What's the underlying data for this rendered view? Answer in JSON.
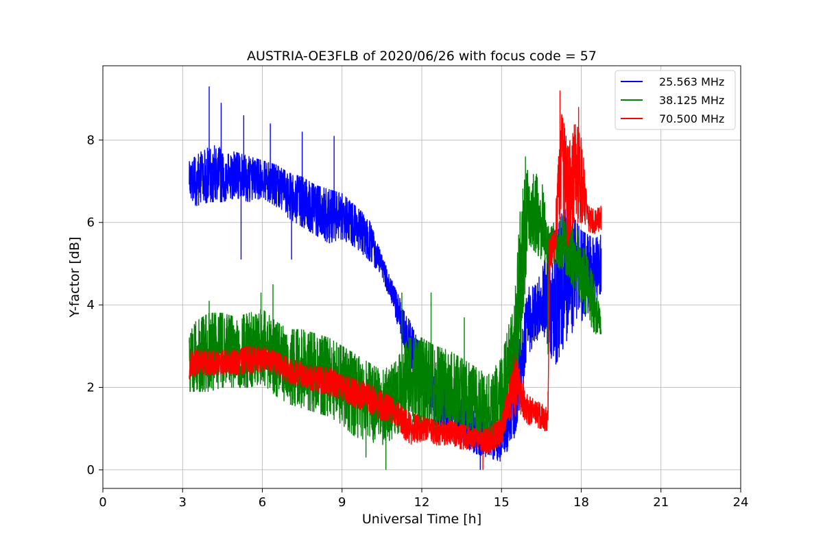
{
  "chart_data": {
    "type": "line",
    "title": "AUSTRIA-OE3FLB of 2020/06/26 with focus code = 57",
    "xlabel": "Universal Time [h]",
    "ylabel": "Y-factor [dB]",
    "xlim": [
      0,
      24
    ],
    "ylim": [
      -0.45,
      9.8
    ],
    "xticks": [
      0,
      3,
      6,
      9,
      12,
      15,
      18,
      21,
      24
    ],
    "yticks": [
      0,
      2,
      4,
      6,
      8
    ],
    "grid": true,
    "legend_position": "top-right",
    "series": [
      {
        "name": "25.563 MHz",
        "color": "#0000ff",
        "x": [
          3.25,
          3.5,
          4.0,
          4.5,
          5.0,
          5.5,
          6.0,
          6.5,
          7.0,
          7.5,
          8.0,
          8.5,
          9.0,
          9.5,
          10.0,
          10.5,
          11.0,
          11.5,
          12.0,
          12.5,
          13.0,
          13.5,
          14.0,
          14.5,
          15.0,
          15.5,
          16.0,
          16.5,
          17.0,
          17.5,
          18.0,
          18.5,
          18.75
        ],
        "lower": [
          6.6,
          6.4,
          6.5,
          6.5,
          6.6,
          6.5,
          6.6,
          6.4,
          6.1,
          5.9,
          5.7,
          5.5,
          5.6,
          5.4,
          5.1,
          4.7,
          3.7,
          2.6,
          1.6,
          1.1,
          0.8,
          0.6,
          0.4,
          0.3,
          0.2,
          0.8,
          2.8,
          3.3,
          2.5,
          3.2,
          3.6,
          4.0,
          4.3
        ],
        "upper": [
          7.5,
          7.6,
          7.9,
          7.8,
          7.7,
          7.6,
          7.5,
          7.4,
          7.2,
          7.1,
          6.9,
          6.8,
          6.7,
          6.4,
          6.1,
          5.2,
          4.4,
          3.7,
          2.9,
          2.4,
          2.0,
          1.7,
          1.4,
          1.2,
          1.1,
          2.5,
          4.4,
          4.8,
          6.0,
          6.4,
          5.8,
          5.6,
          5.7
        ],
        "spikes": [
          [
            4.0,
            9.3
          ],
          [
            4.45,
            8.9
          ],
          [
            5.2,
            5.1
          ],
          [
            5.3,
            8.6
          ],
          [
            6.3,
            8.4
          ],
          [
            7.1,
            5.1
          ],
          [
            7.5,
            8.2
          ],
          [
            8.7,
            8.1
          ],
          [
            11.9,
            2.6
          ],
          [
            14.2,
            0.0
          ]
        ]
      },
      {
        "name": "38.125 MHz",
        "color": "#008000",
        "x": [
          3.25,
          3.5,
          4.0,
          4.5,
          5.0,
          5.5,
          6.0,
          6.5,
          7.0,
          7.5,
          8.0,
          8.5,
          9.0,
          9.5,
          10.0,
          10.5,
          11.0,
          11.5,
          12.0,
          12.5,
          13.0,
          13.5,
          14.0,
          14.5,
          15.0,
          15.5,
          15.75,
          16.0,
          16.5,
          16.75,
          17.0,
          17.5,
          18.0,
          18.5,
          18.75
        ],
        "lower": [
          1.9,
          1.9,
          1.9,
          2.0,
          2.0,
          2.0,
          2.1,
          1.8,
          1.6,
          1.5,
          1.4,
          1.3,
          1.1,
          0.8,
          0.7,
          0.6,
          0.8,
          1.2,
          0.9,
          0.9,
          0.9,
          0.8,
          0.8,
          0.6,
          0.7,
          1.8,
          3.0,
          5.5,
          5.1,
          5.0,
          5.0,
          4.7,
          4.0,
          3.3,
          3.3
        ],
        "upper": [
          3.3,
          3.6,
          3.8,
          3.8,
          3.7,
          3.8,
          3.9,
          3.6,
          3.4,
          3.4,
          3.3,
          3.2,
          3.0,
          2.8,
          2.6,
          2.4,
          2.6,
          3.2,
          3.2,
          3.0,
          2.9,
          2.7,
          2.5,
          2.3,
          2.7,
          4.2,
          6.8,
          7.3,
          7.1,
          5.9,
          6.0,
          6.3,
          5.6,
          4.6,
          3.7
        ],
        "spikes": [
          [
            4.0,
            4.1
          ],
          [
            5.95,
            4.3
          ],
          [
            6.4,
            4.5
          ],
          [
            9.9,
            0.3
          ],
          [
            10.65,
            0.0
          ],
          [
            11.25,
            4.3
          ],
          [
            12.35,
            4.3
          ],
          [
            13.6,
            3.7
          ],
          [
            15.9,
            7.6
          ],
          [
            16.75,
            2.8
          ]
        ]
      },
      {
        "name": "70.500 MHz",
        "color": "#ff0000",
        "x": [
          3.25,
          3.5,
          4.0,
          4.5,
          5.0,
          5.5,
          6.0,
          6.5,
          7.0,
          7.5,
          8.0,
          8.5,
          9.0,
          9.5,
          10.0,
          10.5,
          11.0,
          11.5,
          12.0,
          12.5,
          13.0,
          13.5,
          14.0,
          14.5,
          15.0,
          15.25,
          15.5,
          15.75,
          16.0,
          16.5,
          16.75,
          16.8,
          17.0,
          17.25,
          17.5,
          17.75,
          18.0,
          18.25,
          18.5,
          18.75
        ],
        "lower": [
          2.2,
          2.3,
          2.3,
          2.3,
          2.3,
          2.3,
          2.4,
          2.3,
          2.1,
          2.0,
          1.9,
          1.8,
          1.7,
          1.5,
          1.4,
          1.2,
          1.1,
          0.6,
          0.7,
          0.6,
          0.6,
          0.5,
          0.5,
          0.4,
          0.6,
          1.0,
          1.3,
          1.3,
          1.1,
          1.0,
          0.9,
          4.8,
          5.1,
          6.4,
          5.4,
          6.0,
          6.0,
          5.8,
          5.7,
          5.8
        ],
        "upper": [
          2.9,
          2.9,
          2.9,
          2.9,
          2.9,
          3.0,
          3.0,
          2.9,
          2.7,
          2.6,
          2.5,
          2.5,
          2.3,
          2.2,
          2.1,
          1.9,
          1.7,
          1.4,
          1.3,
          1.2,
          1.2,
          1.1,
          1.0,
          1.0,
          1.3,
          2.0,
          2.9,
          2.3,
          1.8,
          1.6,
          1.5,
          5.6,
          5.9,
          8.8,
          7.8,
          8.4,
          8.2,
          6.4,
          6.3,
          6.4
        ],
        "spikes": [
          [
            16.75,
            1.9
          ],
          [
            17.2,
            9.2
          ],
          [
            17.9,
            8.8
          ],
          [
            14.3,
            0.0
          ]
        ]
      }
    ]
  }
}
